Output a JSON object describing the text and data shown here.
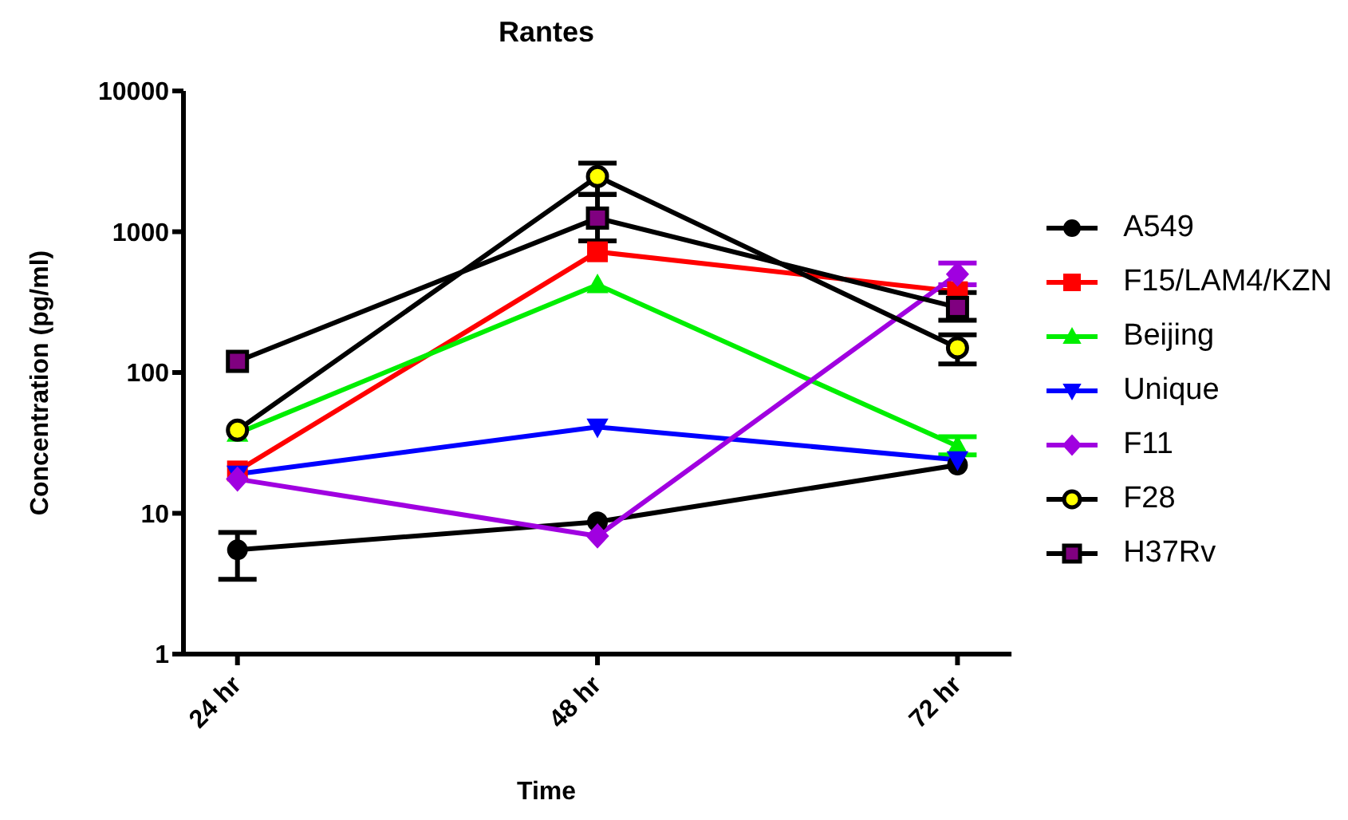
{
  "chart_data": {
    "type": "line",
    "title": "Rantes",
    "xlabel": "Time",
    "ylabel": "Concentration (pg/ml)",
    "categories": [
      "24 hr",
      "48 hr",
      "72 hr"
    ],
    "log": "y",
    "ylim": [
      1,
      10000
    ],
    "yticks": [
      1,
      10,
      100,
      1000,
      10000
    ],
    "grid": false,
    "legend": "right",
    "line_style": "solid",
    "series": [
      {
        "name": "A549",
        "color": "#000000",
        "marker": "circle",
        "values": [
          5.5,
          8.7,
          22
        ],
        "errors": [
          [
            3.4,
            7.3
          ],
          null,
          null
        ]
      },
      {
        "name": "F15/LAM4/KZN",
        "color": "#ff0000",
        "marker": "square",
        "values": [
          20,
          720,
          375
        ]
      },
      {
        "name": "Beijing",
        "color": "#00ee00",
        "marker": "triangle",
        "values": [
          37,
          420,
          30
        ],
        "errors": [
          null,
          null,
          [
            26,
            35
          ]
        ]
      },
      {
        "name": "Unique",
        "color": "#0000ff",
        "marker": "triangle-down",
        "values": [
          19,
          41,
          24
        ]
      },
      {
        "name": "F11",
        "color": "#a000e0",
        "marker": "diamond",
        "values": [
          17.5,
          6.9,
          500
        ],
        "errors": [
          null,
          null,
          [
            420,
            600
          ]
        ]
      },
      {
        "name": "F28",
        "color": "#000000",
        "marker": "circle",
        "colors": [
          "#ffff00",
          "#ffff00",
          "#ffff00"
        ],
        "values": [
          39,
          2470,
          150
        ],
        "errors": [
          null,
          [
            1840,
            3070
          ],
          [
            115,
            185
          ]
        ]
      },
      {
        "name": "H37Rv",
        "color": "#000000",
        "marker": "square",
        "colors": [
          "#800080",
          "#800080",
          "#800080"
        ],
        "values": [
          120,
          1250,
          290
        ],
        "errors": [
          null,
          [
            860,
            1840
          ],
          [
            235,
            370
          ]
        ]
      }
    ]
  }
}
